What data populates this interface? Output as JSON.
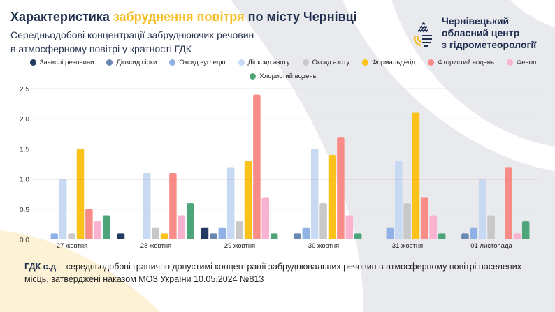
{
  "header": {
    "title_part1": "Характеристика ",
    "title_highlight": "забруднення повітря",
    "title_part2": " по місту Чернівці",
    "subtitle_line1": "Середньодобові концентрації забруднюючих речовин",
    "subtitle_line2": "в атмосферному повітрі у кратності ГДК"
  },
  "logo": {
    "line1": "Чернівецький",
    "line2": "обласний центр",
    "line3": "з гідрометеорології",
    "icon": "water-drop-logo-icon"
  },
  "colors": {
    "accent": "#f5bf2a",
    "threshold": "#e06767",
    "grid": "#e3e5ea"
  },
  "chart_data": {
    "type": "bar",
    "title": "",
    "xlabel": "",
    "ylabel": "",
    "ylim": [
      0,
      2.5
    ],
    "yticks": [
      "0.0",
      "0.5",
      "1.0",
      "1.5",
      "2.0",
      "2.5"
    ],
    "threshold": 1.0,
    "grid": true,
    "legend_placement": "top",
    "categories": [
      "27 жовтня",
      "28 жовтня",
      "29 жовтня",
      "30 жовтня",
      "31 жовтня",
      "01 листопада"
    ],
    "series": [
      {
        "name": "Завислі речовини",
        "color": "#233a63",
        "values": [
          0,
          0.1,
          0.2,
          0,
          0,
          0
        ]
      },
      {
        "name": "Діоксид сірки",
        "color": "#6a86b3",
        "values": [
          0,
          0,
          0.1,
          0.1,
          0,
          0.1
        ]
      },
      {
        "name": "Оксид вуглецю",
        "color": "#8fb1e6",
        "values": [
          0.1,
          0,
          0.2,
          0.2,
          0.2,
          0.2
        ]
      },
      {
        "name": "Діоксид азоту",
        "color": "#c8daf3",
        "values": [
          1.0,
          1.1,
          1.2,
          1.5,
          1.3,
          1.0
        ]
      },
      {
        "name": "Оксид азоту",
        "color": "#c8c8c8",
        "values": [
          0.1,
          0.2,
          0.3,
          0.6,
          0.6,
          0.4
        ]
      },
      {
        "name": "Формальдегід",
        "color": "#fbc21b",
        "values": [
          1.5,
          0.1,
          1.3,
          1.4,
          2.1,
          0
        ]
      },
      {
        "name": "Фтористий водень",
        "color": "#fa8c88",
        "values": [
          0.5,
          1.1,
          2.4,
          1.7,
          0.7,
          1.2
        ]
      },
      {
        "name": "Фенол",
        "color": "#f9b2cf",
        "values": [
          0.3,
          0.4,
          0.7,
          0.4,
          0.4,
          0.1
        ]
      },
      {
        "name": "Хлористий водень",
        "color": "#4fa57a",
        "values": [
          0.4,
          0.6,
          0.1,
          0.1,
          0.1,
          0.3
        ]
      }
    ]
  },
  "footer": {
    "term": "ГДК с.д",
    "text": ". - середньодобові гранично допустимі концентрації забруднювальних речовин в атмосферному повітрі населених місць, затверджені наказом МОЗ України 10.05.2024 №813"
  }
}
